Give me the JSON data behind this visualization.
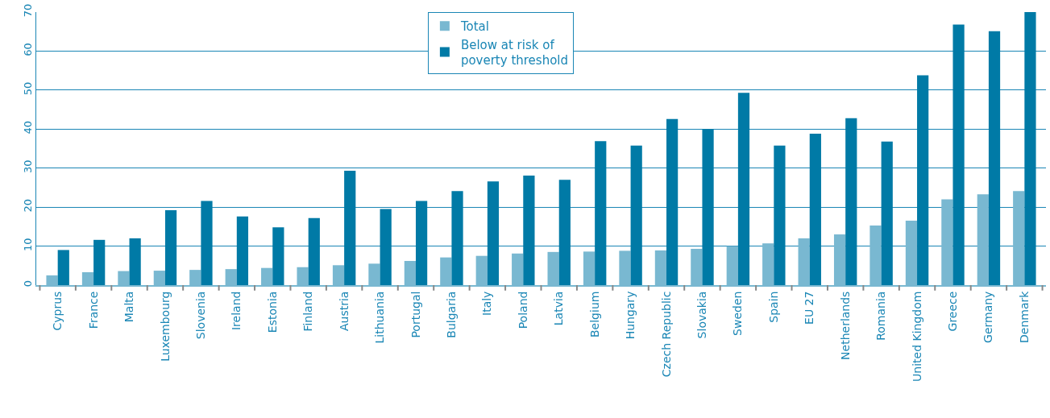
{
  "chart_data": {
    "type": "bar",
    "categories": [
      "Cyprus",
      "France",
      "Malta",
      "Luxembourg",
      "Slovenia",
      "Ireland",
      "Estonia",
      "Finland",
      "Austria",
      "Lithuania",
      "Portugal",
      "Bulgaria",
      "Italy",
      "Poland",
      "Latvia",
      "Belgium",
      "Hungary",
      "Czech Republic",
      "Slovakia",
      "Sweden",
      "Spain",
      "EU 27",
      "Netherlands",
      "Romania",
      "United Kingdom",
      "Greece",
      "Germany",
      "Denmark"
    ],
    "series": [
      {
        "name": "Total",
        "color": "#79b8d1",
        "values": [
          2.5,
          3.3,
          3.6,
          3.7,
          3.9,
          4.1,
          4.4,
          4.6,
          5.1,
          5.5,
          6.2,
          7.1,
          7.5,
          8.1,
          8.5,
          8.6,
          8.8,
          8.9,
          9.3,
          10,
          10.7,
          12,
          13,
          15.3,
          16.5,
          22,
          23.3,
          24.1
        ]
      },
      {
        "name": "Below at risk of\npoverty threshold",
        "color": "#007aa6",
        "values": [
          9,
          11.6,
          12,
          19.2,
          21.6,
          17.6,
          14.8,
          17.2,
          29.3,
          19.5,
          21.6,
          24.1,
          26.6,
          28.1,
          27,
          36.9,
          35.8,
          42.6,
          40,
          49.3,
          35.8,
          38.8,
          42.8,
          36.8,
          53.8,
          66.8,
          65.1,
          70
        ]
      }
    ],
    "ylim": [
      0,
      70
    ],
    "yticks": [
      0,
      10,
      20,
      30,
      40,
      50,
      60,
      70
    ],
    "grid": "y",
    "legend": "top"
  }
}
